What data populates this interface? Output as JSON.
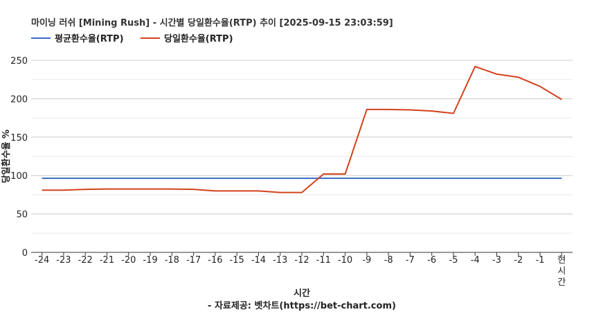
{
  "chart_data": {
    "type": "line",
    "title": "마이닝 러쉬 [Mining Rush] - 시간별 당일환수율(RTP) 추이 [2025-09-15 23:03:59]",
    "xlabel": "시간",
    "ylabel": "당일환수율 %",
    "source": "- 자료제공: 벳차트(https://bet-chart.com)",
    "categories": [
      "-24",
      "-23",
      "-22",
      "-21",
      "-20",
      "-19",
      "-18",
      "-17",
      "-16",
      "-15",
      "-14",
      "-13",
      "-12",
      "-11",
      "-10",
      "-9",
      "-8",
      "-7",
      "-6",
      "-5",
      "-4",
      "-3",
      "-2",
      "-1",
      "현시간"
    ],
    "ylim": [
      0,
      250
    ],
    "yticks": [
      0,
      50,
      100,
      150,
      200,
      250
    ],
    "grid": true,
    "legend_position": "top-left",
    "series": [
      {
        "name": "평균환수율(RTP)",
        "color": "#3b6bc6",
        "values": [
          96.5,
          96.5,
          96.5,
          96.5,
          96.5,
          96.5,
          96.5,
          96.5,
          96.5,
          96.5,
          96.5,
          96.5,
          96.5,
          96.5,
          96.5,
          96.5,
          96.5,
          96.5,
          96.5,
          96.5,
          96.5,
          96.5,
          96.5,
          96.5,
          96.5
        ]
      },
      {
        "name": "당일환수율(RTP)",
        "color": "#d4401c",
        "values": [
          81,
          81,
          82,
          82.5,
          82.5,
          82.5,
          82.5,
          82,
          80,
          80,
          80,
          78,
          78,
          102,
          102,
          186,
          186,
          185.5,
          184,
          181,
          242,
          232,
          228,
          216,
          199
        ]
      }
    ]
  }
}
